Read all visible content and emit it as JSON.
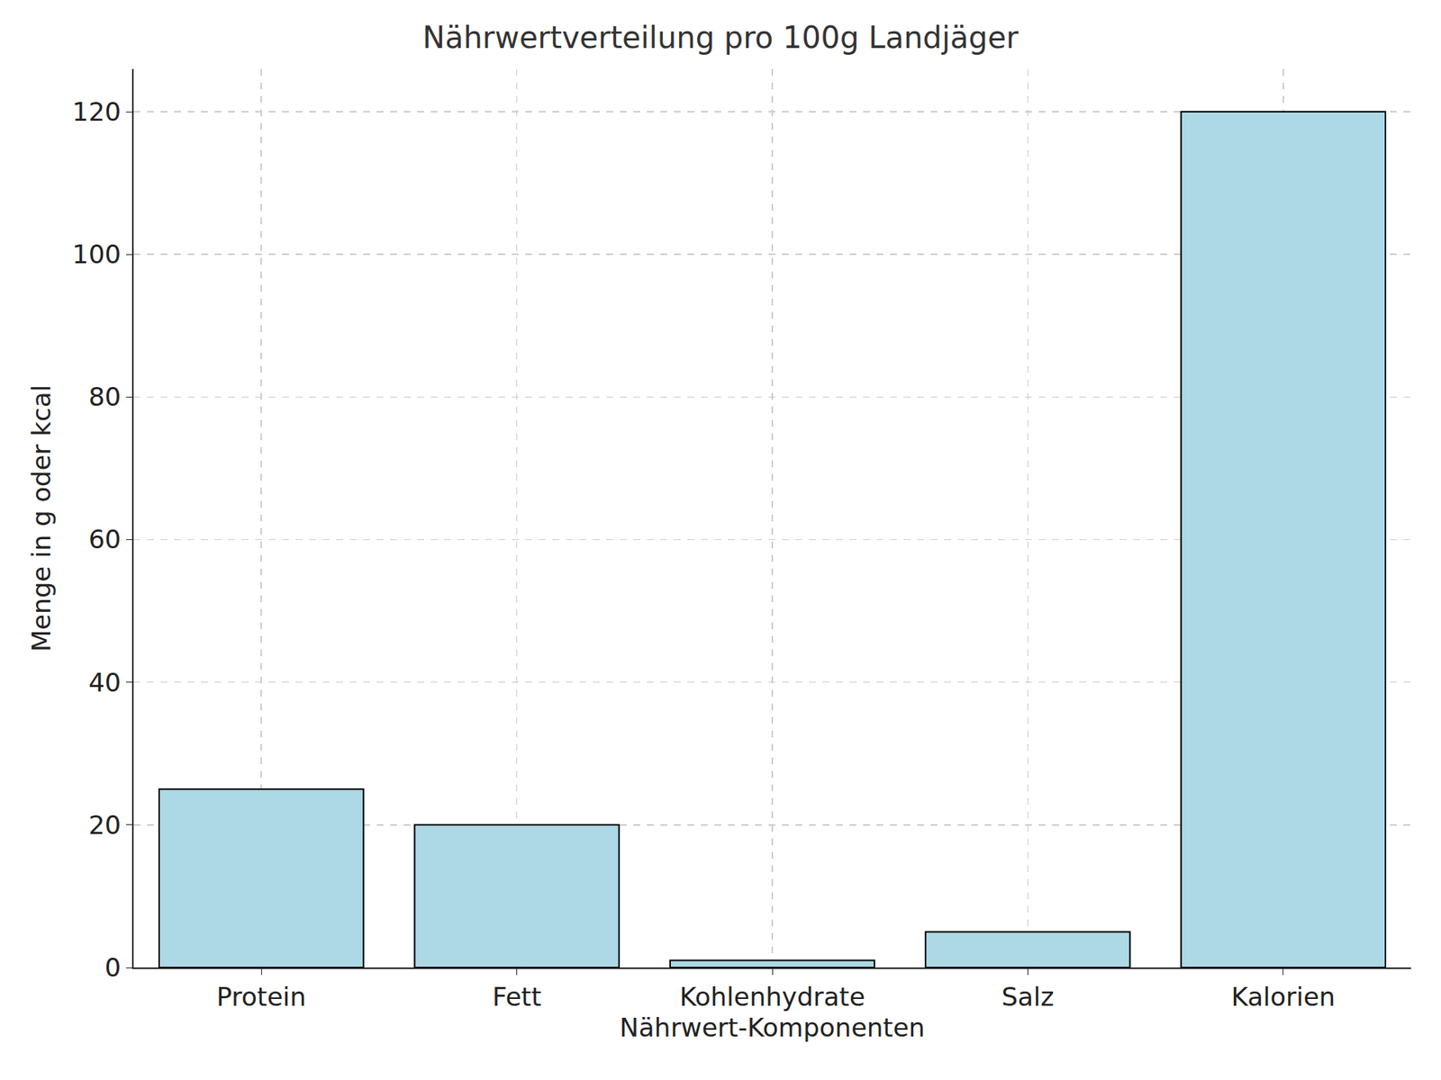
{
  "chart_data": {
    "type": "bar",
    "title": "Nährwertverteilung pro 100g Landjäger",
    "x_label": "Nährwert-Komponenten",
    "y_label": "Menge in g oder kcal",
    "categories": [
      "Protein",
      "Fett",
      "Kohlenhydrate",
      "Salz",
      "Kalorien"
    ],
    "values": [
      25,
      20,
      1,
      5,
      120
    ],
    "color": "#add8e6",
    "ylim": [
      0,
      126
    ],
    "yticks": [
      0,
      20,
      40,
      60,
      80,
      100,
      120
    ],
    "grid": true
  }
}
